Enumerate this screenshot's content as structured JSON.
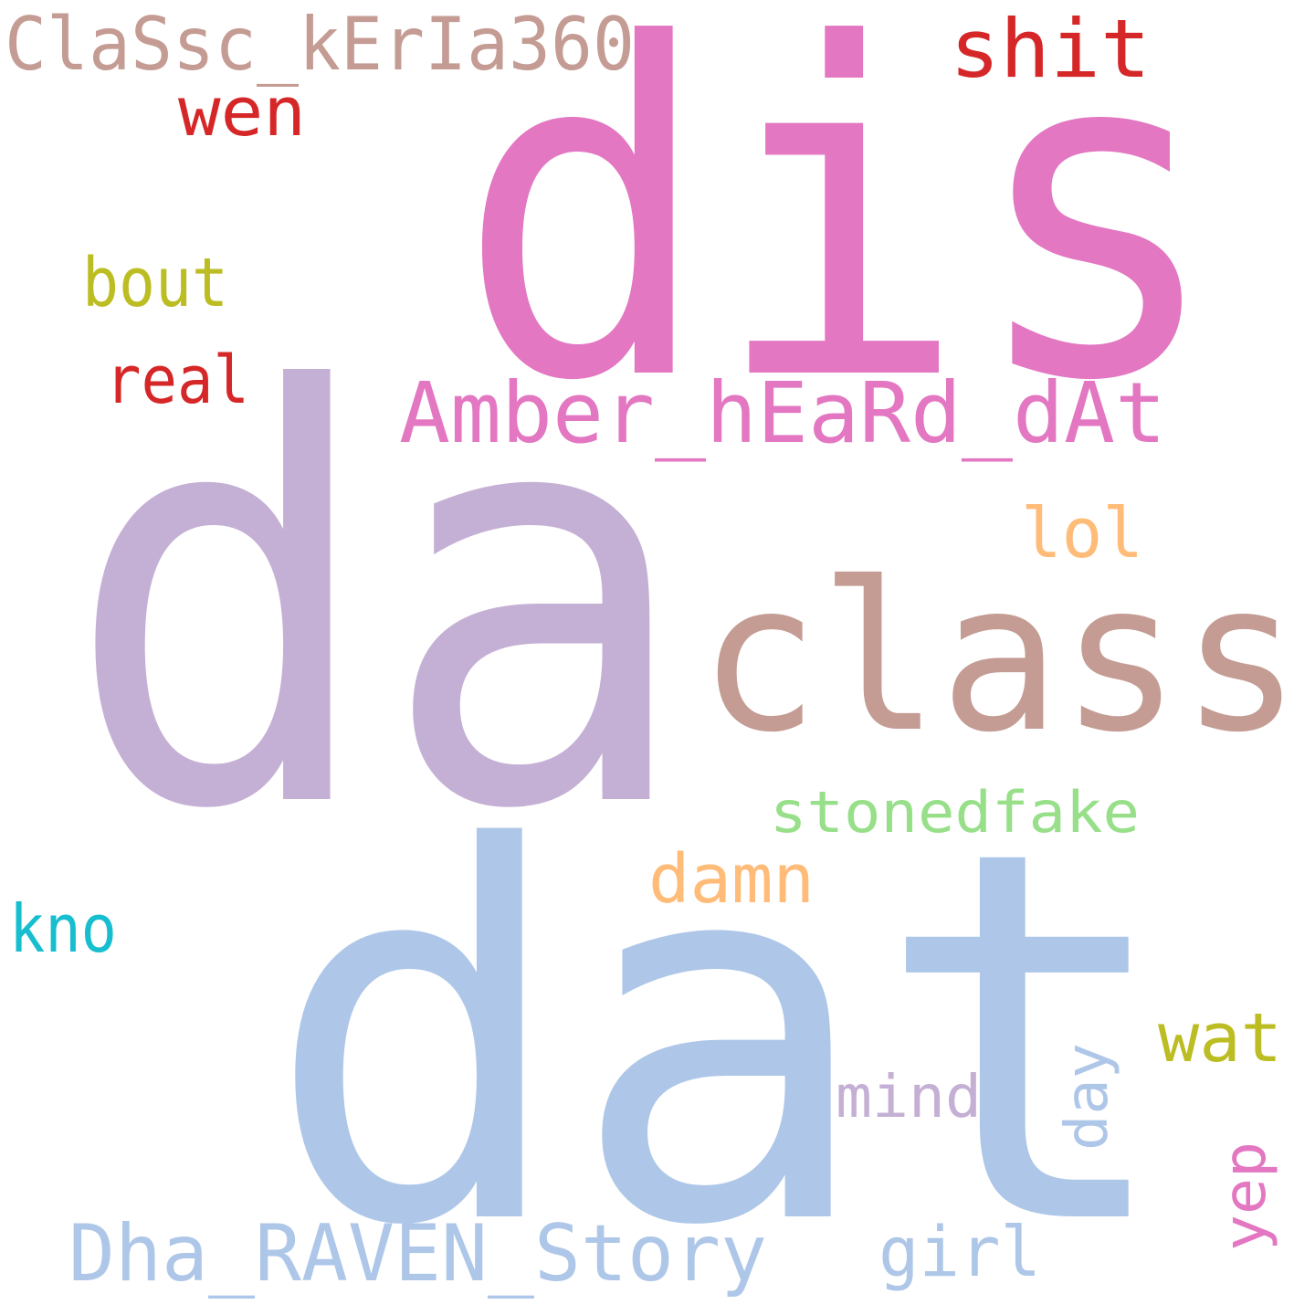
{
  "word_cloud": {
    "background": "#ffffff",
    "words": [
      {
        "text": "dis",
        "color": "#e377c2"
      },
      {
        "text": "da",
        "color": "#c5b0d5"
      },
      {
        "text": "dat",
        "color": "#aec7e8"
      },
      {
        "text": "class",
        "color": "#c49c94"
      },
      {
        "text": "ClaSsc_kErIa360",
        "color": "#c49c94"
      },
      {
        "text": "shit",
        "color": "#d62728"
      },
      {
        "text": "wen",
        "color": "#d62728"
      },
      {
        "text": "bout",
        "color": "#bcbd22"
      },
      {
        "text": "real",
        "color": "#d62728"
      },
      {
        "text": "Amber_hEaRd_dAt",
        "color": "#e377c2"
      },
      {
        "text": "lol",
        "color": "#ffbb78"
      },
      {
        "text": "stonedfake",
        "color": "#98df8a"
      },
      {
        "text": "damn",
        "color": "#ffbb78"
      },
      {
        "text": "kno",
        "color": "#17becf"
      },
      {
        "text": "wat",
        "color": "#bcbd22"
      },
      {
        "text": "mind",
        "color": "#c5b0d5"
      },
      {
        "text": "day",
        "color": "#aec7e8"
      },
      {
        "text": "yep",
        "color": "#e377c2"
      },
      {
        "text": "Dha_RAVEN_Story",
        "color": "#aec7e8"
      },
      {
        "text": "girl",
        "color": "#aec7e8"
      }
    ]
  }
}
